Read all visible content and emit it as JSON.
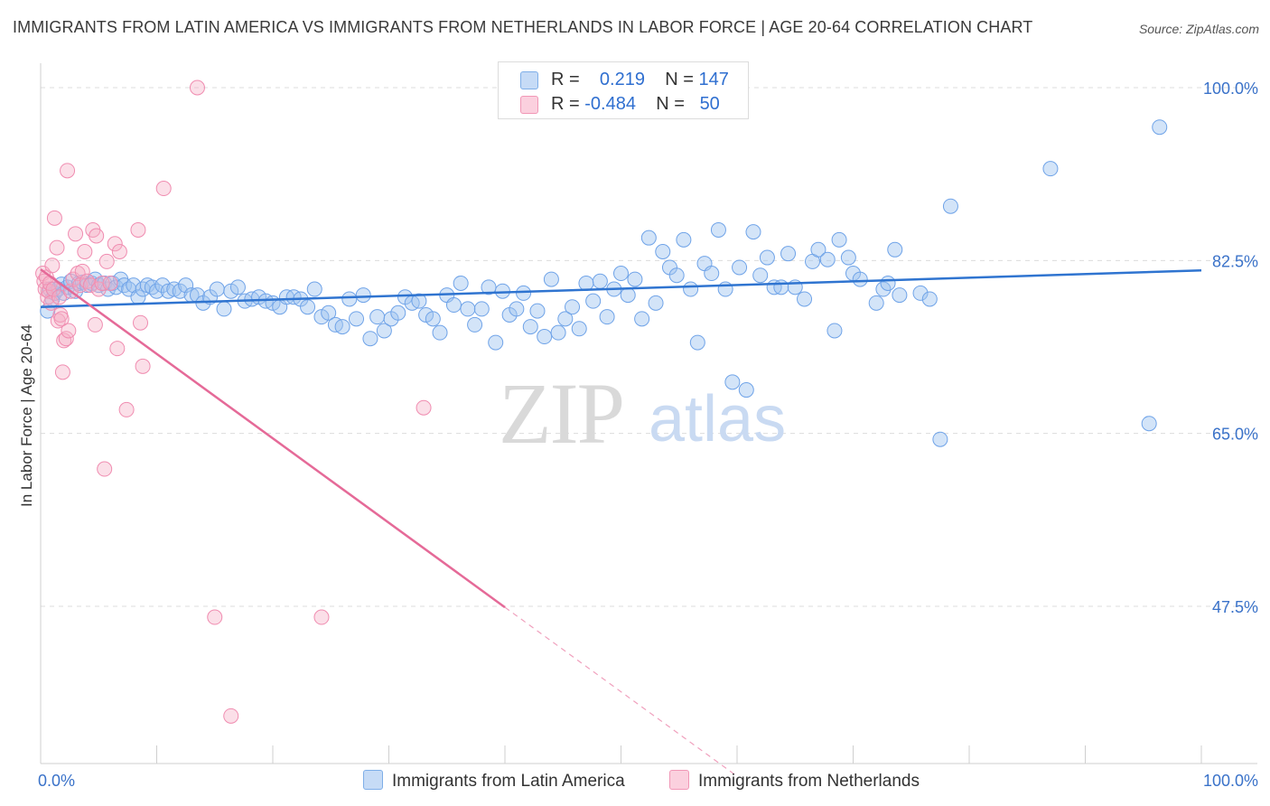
{
  "header": {
    "title": "IMMIGRANTS FROM LATIN AMERICA VS IMMIGRANTS FROM NETHERLANDS IN LABOR FORCE | AGE 20-64 CORRELATION CHART",
    "source": "Source: ZipAtlas.com"
  },
  "legend": {
    "rows": [
      {
        "r_label": "R =",
        "r_value": "0.219",
        "n_label": "N =",
        "n_value": "147",
        "color": "#9ec3f0"
      },
      {
        "r_label": "R =",
        "r_value": "-0.484",
        "n_label": "N =",
        "n_value": "50",
        "color": "#f5b0c6"
      }
    ]
  },
  "bottom_legend": [
    {
      "label": "Immigrants from Latin America",
      "color": "#a9c9f2"
    },
    {
      "label": "Immigrants from Netherlands",
      "color": "#f8bfd1"
    }
  ],
  "watermark": {
    "zip": "ZIP",
    "atlas": "atlas"
  },
  "chart_data": {
    "type": "scatter",
    "title": "IMMIGRANTS FROM LATIN AMERICA VS IMMIGRANTS FROM NETHERLANDS IN LABOR FORCE | AGE 20-64 CORRELATION CHART",
    "ylabel": "In Labor Force | Age 20-64",
    "xlabel": "",
    "xlim": [
      0,
      100
    ],
    "ylim": [
      30,
      101.5
    ],
    "y_ticks": [
      47.5,
      65.0,
      82.5,
      100.0
    ],
    "y_tick_labels": [
      "47.5%",
      "65.0%",
      "82.5%",
      "100.0%"
    ],
    "x_tick_labels": [
      "0.0%",
      "100.0%"
    ],
    "grid": "horizontal dashed",
    "legend_position": "top-center",
    "series": [
      {
        "name": "Immigrants from Latin America",
        "color": "#6fa3e8",
        "trend": {
          "x0": 0,
          "y0": 77.8,
          "x1": 100,
          "y1": 81.5
        },
        "points": [
          [
            0.6,
            77.4
          ],
          [
            0.8,
            79.6
          ],
          [
            1.0,
            78.6
          ],
          [
            1.2,
            79.2
          ],
          [
            1.5,
            79.6
          ],
          [
            1.8,
            80.1
          ],
          [
            2.0,
            79.2
          ],
          [
            2.3,
            79.8
          ],
          [
            2.6,
            80.4
          ],
          [
            3.0,
            79.4
          ],
          [
            3.3,
            80.2
          ],
          [
            3.6,
            80.3
          ],
          [
            4.0,
            80.0
          ],
          [
            4.4,
            80.2
          ],
          [
            4.7,
            80.6
          ],
          [
            5.0,
            80.0
          ],
          [
            5.5,
            80.2
          ],
          [
            5.8,
            79.6
          ],
          [
            6.2,
            80.2
          ],
          [
            6.5,
            79.8
          ],
          [
            6.9,
            80.6
          ],
          [
            7.2,
            80.0
          ],
          [
            7.6,
            79.6
          ],
          [
            8.0,
            80.0
          ],
          [
            8.4,
            78.8
          ],
          [
            8.8,
            79.6
          ],
          [
            9.2,
            80.0
          ],
          [
            9.6,
            79.8
          ],
          [
            10.0,
            79.4
          ],
          [
            10.5,
            80.0
          ],
          [
            11.0,
            79.4
          ],
          [
            11.5,
            79.6
          ],
          [
            12.0,
            79.4
          ],
          [
            12.5,
            80.0
          ],
          [
            13.0,
            79.0
          ],
          [
            13.5,
            79.0
          ],
          [
            14.0,
            78.2
          ],
          [
            14.6,
            78.8
          ],
          [
            15.2,
            79.6
          ],
          [
            15.8,
            77.6
          ],
          [
            16.4,
            79.4
          ],
          [
            17.0,
            79.8
          ],
          [
            17.6,
            78.4
          ],
          [
            18.2,
            78.6
          ],
          [
            18.8,
            78.8
          ],
          [
            19.4,
            78.4
          ],
          [
            20.0,
            78.2
          ],
          [
            20.6,
            77.8
          ],
          [
            21.2,
            78.8
          ],
          [
            21.8,
            78.8
          ],
          [
            22.4,
            78.6
          ],
          [
            23.0,
            77.8
          ],
          [
            23.6,
            79.6
          ],
          [
            24.2,
            76.8
          ],
          [
            24.8,
            77.2
          ],
          [
            25.4,
            76.0
          ],
          [
            26.0,
            75.8
          ],
          [
            26.6,
            78.6
          ],
          [
            27.2,
            76.6
          ],
          [
            27.8,
            79.0
          ],
          [
            28.4,
            74.6
          ],
          [
            29.0,
            76.8
          ],
          [
            29.6,
            75.4
          ],
          [
            30.2,
            76.6
          ],
          [
            30.8,
            77.2
          ],
          [
            31.4,
            78.8
          ],
          [
            32.0,
            78.2
          ],
          [
            32.6,
            78.4
          ],
          [
            33.2,
            77.0
          ],
          [
            33.8,
            76.6
          ],
          [
            34.4,
            75.2
          ],
          [
            35.0,
            79.0
          ],
          [
            35.6,
            78.0
          ],
          [
            36.2,
            80.2
          ],
          [
            36.8,
            77.6
          ],
          [
            37.4,
            76.0
          ],
          [
            38.0,
            77.6
          ],
          [
            38.6,
            79.8
          ],
          [
            39.2,
            74.2
          ],
          [
            39.8,
            79.4
          ],
          [
            40.4,
            77.0
          ],
          [
            41.0,
            77.6
          ],
          [
            41.6,
            79.2
          ],
          [
            42.2,
            75.8
          ],
          [
            42.8,
            77.4
          ],
          [
            43.4,
            74.8
          ],
          [
            44.0,
            80.6
          ],
          [
            44.6,
            75.2
          ],
          [
            45.2,
            76.6
          ],
          [
            45.8,
            77.8
          ],
          [
            46.4,
            75.6
          ],
          [
            47.0,
            80.2
          ],
          [
            47.6,
            78.4
          ],
          [
            48.2,
            80.4
          ],
          [
            48.8,
            76.8
          ],
          [
            49.4,
            79.6
          ],
          [
            50.0,
            81.2
          ],
          [
            50.6,
            79.0
          ],
          [
            51.2,
            80.6
          ],
          [
            51.8,
            76.6
          ],
          [
            52.4,
            84.8
          ],
          [
            53.0,
            78.2
          ],
          [
            53.6,
            83.4
          ],
          [
            54.2,
            81.8
          ],
          [
            54.8,
            81.0
          ],
          [
            55.4,
            84.6
          ],
          [
            56.0,
            79.6
          ],
          [
            56.6,
            74.2
          ],
          [
            57.2,
            82.2
          ],
          [
            57.8,
            81.2
          ],
          [
            58.4,
            85.6
          ],
          [
            59.0,
            79.6
          ],
          [
            59.6,
            70.2
          ],
          [
            60.2,
            81.8
          ],
          [
            60.8,
            69.4
          ],
          [
            61.4,
            85.4
          ],
          [
            62.0,
            81.0
          ],
          [
            62.6,
            82.8
          ],
          [
            63.2,
            79.8
          ],
          [
            63.8,
            79.8
          ],
          [
            64.4,
            83.2
          ],
          [
            65.0,
            79.8
          ],
          [
            65.8,
            78.6
          ],
          [
            66.5,
            82.4
          ],
          [
            67.0,
            83.6
          ],
          [
            67.8,
            82.6
          ],
          [
            68.4,
            75.4
          ],
          [
            68.8,
            84.6
          ],
          [
            69.6,
            82.8
          ],
          [
            70.0,
            81.2
          ],
          [
            70.6,
            80.6
          ],
          [
            72.0,
            78.2
          ],
          [
            72.6,
            79.6
          ],
          [
            73.0,
            80.2
          ],
          [
            73.6,
            83.6
          ],
          [
            74.0,
            79.0
          ],
          [
            75.8,
            79.2
          ],
          [
            76.6,
            78.6
          ],
          [
            77.5,
            64.4
          ],
          [
            78.4,
            88.0
          ],
          [
            87.0,
            91.8
          ],
          [
            95.5,
            66.0
          ],
          [
            96.4,
            96.0
          ]
        ]
      },
      {
        "name": "Immigrants from Netherlands",
        "color": "#f28db0",
        "trend": {
          "x0": 0,
          "y0": 81.6,
          "x1": 40,
          "y1": 47.4
        },
        "trend_dashed": {
          "x0": 40,
          "y0": 47.4,
          "x1": 60,
          "y1": 30.3
        },
        "points": [
          [
            0.2,
            81.2
          ],
          [
            0.3,
            80.4
          ],
          [
            0.4,
            79.6
          ],
          [
            0.5,
            80.8
          ],
          [
            0.6,
            78.8
          ],
          [
            0.7,
            79.4
          ],
          [
            0.8,
            80.2
          ],
          [
            0.9,
            78.2
          ],
          [
            1.0,
            82.0
          ],
          [
            1.1,
            79.6
          ],
          [
            1.2,
            86.8
          ],
          [
            1.4,
            83.8
          ],
          [
            1.5,
            76.4
          ],
          [
            1.6,
            78.8
          ],
          [
            1.7,
            77.0
          ],
          [
            1.8,
            76.6
          ],
          [
            1.9,
            71.2
          ],
          [
            2.0,
            74.4
          ],
          [
            2.2,
            74.6
          ],
          [
            2.3,
            91.6
          ],
          [
            2.4,
            75.4
          ],
          [
            2.6,
            79.4
          ],
          [
            2.8,
            80.6
          ],
          [
            3.0,
            85.2
          ],
          [
            3.2,
            81.2
          ],
          [
            3.4,
            80.0
          ],
          [
            3.6,
            81.4
          ],
          [
            3.8,
            83.4
          ],
          [
            4.0,
            80.4
          ],
          [
            4.3,
            80.0
          ],
          [
            4.5,
            85.6
          ],
          [
            4.7,
            76.0
          ],
          [
            4.8,
            85.0
          ],
          [
            5.0,
            79.6
          ],
          [
            5.3,
            80.2
          ],
          [
            5.5,
            61.4
          ],
          [
            5.7,
            82.4
          ],
          [
            6.0,
            80.2
          ],
          [
            6.4,
            84.2
          ],
          [
            6.6,
            73.6
          ],
          [
            6.8,
            83.4
          ],
          [
            7.4,
            67.4
          ],
          [
            8.4,
            85.6
          ],
          [
            8.6,
            76.2
          ],
          [
            8.8,
            71.8
          ],
          [
            10.6,
            89.8
          ],
          [
            13.5,
            100.0
          ],
          [
            15.0,
            46.4
          ],
          [
            16.4,
            36.4
          ],
          [
            24.2,
            46.4
          ],
          [
            33.0,
            67.6
          ]
        ]
      }
    ]
  }
}
